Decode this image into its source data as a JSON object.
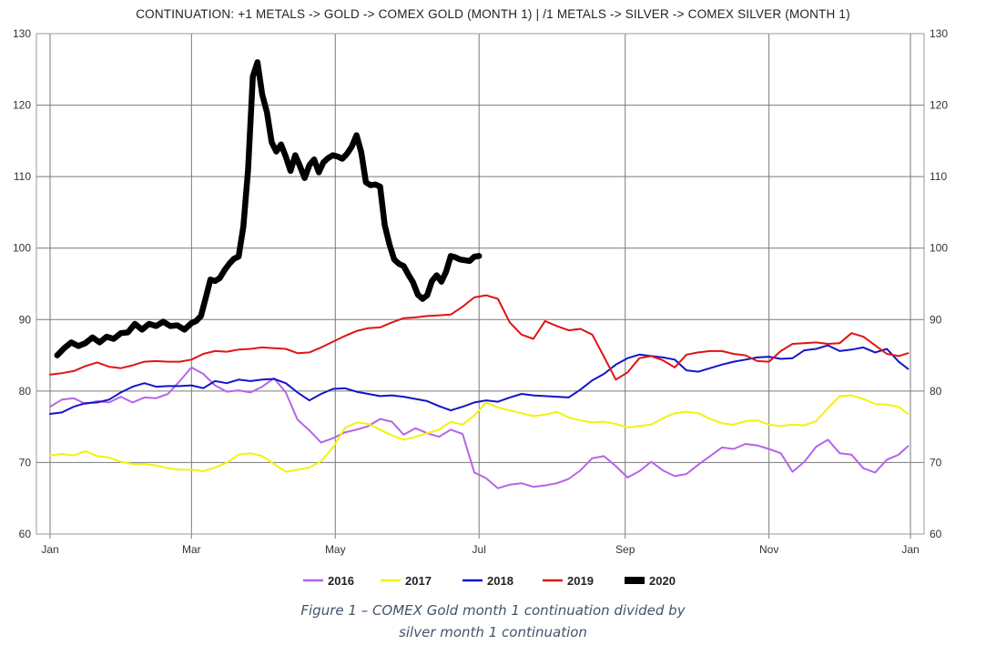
{
  "chart_data": {
    "type": "line",
    "title": "CONTINUATION: +1 METALS -> GOLD -> COMEX GOLD (MONTH 1) | /1 METALS -> SILVER -> COMEX SILVER (MONTH 1)",
    "xlabel": "",
    "ylabel": "",
    "x_ticks": [
      "Jan",
      "Mar",
      "May",
      "Jul",
      "Sep",
      "Nov",
      "Jan"
    ],
    "y_ticks": [
      60,
      70,
      80,
      90,
      100,
      110,
      120,
      130
    ],
    "ylim": [
      60,
      130
    ],
    "xlim_days": [
      0,
      365
    ],
    "grid": true,
    "legend_position": "bottom",
    "x_unit": "day of year",
    "series": [
      {
        "name": "2016",
        "color": "#b565e8",
        "x": [
          0,
          5,
          10,
          15,
          20,
          25,
          30,
          35,
          40,
          45,
          50,
          55,
          60,
          65,
          70,
          75,
          80,
          85,
          90,
          95,
          100,
          105,
          110,
          115,
          120,
          125,
          130,
          135,
          140,
          145,
          150,
          155,
          160,
          165,
          170,
          175,
          180,
          185,
          190,
          195,
          200,
          205,
          210,
          215,
          220,
          225,
          230,
          235,
          240,
          245,
          250,
          255,
          260,
          265,
          270,
          275,
          280,
          285,
          290,
          295,
          300,
          305,
          310,
          315,
          320,
          325,
          330,
          335,
          340,
          345,
          350,
          355,
          360,
          364
        ],
        "values": [
          77.8,
          78.8,
          79,
          78.2,
          78.6,
          78.4,
          79.2,
          78.4,
          79.1,
          79,
          79.6,
          81.4,
          83.3,
          82.4,
          80.8,
          79.9,
          80.1,
          79.8,
          80.6,
          81.8,
          79.8,
          76,
          74.5,
          72.8,
          73.4,
          74.2,
          74.6,
          75.1,
          76.1,
          75.7,
          73.9,
          74.8,
          74.1,
          73.6,
          74.6,
          74,
          68.6,
          67.8,
          66.4,
          66.9,
          67.1,
          66.6,
          66.8,
          67.1,
          67.7,
          68.9,
          70.6,
          70.9,
          69.5,
          67.9,
          68.8,
          70.1,
          68.9,
          68.1,
          68.4,
          69.7,
          70.9,
          72.1,
          71.9,
          72.6,
          72.4,
          71.9,
          71.3,
          68.7,
          70.1,
          72.2,
          73.2,
          71.3,
          71.1,
          69.2,
          68.6,
          70.4,
          71.1,
          72.3
        ]
      },
      {
        "name": "2017",
        "color": "#f2f20d",
        "x": [
          0,
          5,
          10,
          15,
          20,
          25,
          30,
          35,
          40,
          45,
          50,
          55,
          60,
          65,
          70,
          75,
          80,
          85,
          90,
          95,
          100,
          105,
          110,
          115,
          120,
          125,
          130,
          135,
          140,
          145,
          150,
          155,
          160,
          165,
          170,
          175,
          180,
          185,
          190,
          195,
          200,
          205,
          210,
          215,
          220,
          225,
          230,
          235,
          240,
          245,
          250,
          255,
          260,
          265,
          270,
          275,
          280,
          285,
          290,
          295,
          300,
          305,
          310,
          315,
          320,
          325,
          330,
          335,
          340,
          345,
          350,
          355,
          360,
          364
        ],
        "values": [
          71,
          71.2,
          71,
          71.6,
          70.9,
          70.7,
          70.1,
          69.8,
          69.8,
          69.6,
          69.2,
          69,
          69,
          68.8,
          69.3,
          70,
          71.1,
          71.3,
          70.9,
          69.8,
          68.7,
          69,
          69.3,
          70.2,
          72.1,
          74.8,
          75.6,
          75.4,
          74.6,
          73.8,
          73.2,
          73.6,
          74.1,
          74.6,
          75.7,
          75.3,
          76.6,
          78.4,
          77.7,
          77.3,
          76.9,
          76.5,
          76.7,
          77.1,
          76.3,
          75.9,
          75.6,
          75.7,
          75.4,
          74.9,
          75.1,
          75.3,
          76.2,
          76.9,
          77.1,
          76.9,
          76.1,
          75.5,
          75.3,
          75.8,
          75.9,
          75.3,
          75.1,
          75.3,
          75.2,
          75.8,
          77.6,
          79.3,
          79.4,
          78.9,
          78.2,
          78.1,
          77.8,
          76.8
        ]
      },
      {
        "name": "2018",
        "color": "#1313c8",
        "x": [
          0,
          5,
          10,
          15,
          20,
          25,
          30,
          35,
          40,
          45,
          50,
          55,
          60,
          65,
          70,
          75,
          80,
          85,
          90,
          95,
          100,
          105,
          110,
          115,
          120,
          125,
          130,
          135,
          140,
          145,
          150,
          155,
          160,
          165,
          170,
          175,
          180,
          185,
          190,
          195,
          200,
          205,
          210,
          215,
          220,
          225,
          230,
          235,
          240,
          245,
          250,
          255,
          260,
          265,
          270,
          275,
          280,
          285,
          290,
          295,
          300,
          305,
          310,
          315,
          320,
          325,
          330,
          335,
          340,
          345,
          350,
          355,
          360,
          364
        ],
        "values": [
          76.8,
          77,
          77.8,
          78.3,
          78.4,
          78.8,
          79.8,
          80.6,
          81.1,
          80.6,
          80.7,
          80.7,
          80.8,
          80.4,
          81.4,
          81.1,
          81.6,
          81.4,
          81.6,
          81.7,
          81.1,
          79.8,
          78.7,
          79.6,
          80.3,
          80.4,
          79.9,
          79.6,
          79.3,
          79.4,
          79.2,
          78.9,
          78.6,
          77.9,
          77.3,
          77.8,
          78.4,
          78.7,
          78.5,
          79.1,
          79.6,
          79.4,
          79.3,
          79.2,
          79.1,
          80.2,
          81.5,
          82.4,
          83.7,
          84.6,
          85.1,
          84.9,
          84.7,
          84.4,
          82.9,
          82.7,
          83.2,
          83.7,
          84.1,
          84.4,
          84.7,
          84.8,
          84.5,
          84.6,
          85.7,
          85.9,
          86.4,
          85.6,
          85.8,
          86.1,
          85.4,
          85.9,
          84.1,
          83.1
        ]
      },
      {
        "name": "2019",
        "color": "#e01414",
        "x": [
          0,
          5,
          10,
          15,
          20,
          25,
          30,
          35,
          40,
          45,
          50,
          55,
          60,
          65,
          70,
          75,
          80,
          85,
          90,
          95,
          100,
          105,
          110,
          115,
          120,
          125,
          130,
          135,
          140,
          145,
          150,
          155,
          160,
          165,
          170,
          175,
          180,
          185,
          190,
          195,
          200,
          205,
          210,
          215,
          220,
          225,
          230,
          235,
          240,
          245,
          250,
          255,
          260,
          265,
          270,
          275,
          280,
          285,
          290,
          295,
          300,
          305,
          310,
          315,
          320,
          325,
          330,
          335,
          340,
          345,
          350,
          355,
          360,
          364
        ],
        "values": [
          82.3,
          82.5,
          82.8,
          83.5,
          84,
          83.4,
          83.2,
          83.6,
          84.1,
          84.2,
          84.1,
          84.1,
          84.4,
          85.2,
          85.6,
          85.5,
          85.8,
          85.9,
          86.1,
          86,
          85.9,
          85.3,
          85.4,
          86.1,
          86.9,
          87.7,
          88.4,
          88.8,
          88.9,
          89.6,
          90.2,
          90.3,
          90.5,
          90.6,
          90.7,
          91.8,
          93.1,
          93.4,
          92.9,
          89.6,
          87.9,
          87.3,
          89.8,
          89.1,
          88.5,
          88.7,
          87.9,
          84.8,
          81.6,
          82.6,
          84.6,
          84.9,
          84.3,
          83.3,
          85.1,
          85.4,
          85.6,
          85.6,
          85.2,
          85,
          84.2,
          84.1,
          85.6,
          86.6,
          86.7,
          86.8,
          86.6,
          86.7,
          88.1,
          87.6,
          86.4,
          85.2,
          84.9,
          85.3
        ]
      },
      {
        "name": "2020",
        "color": "#000000",
        "x": [
          3,
          6,
          9,
          12,
          15,
          18,
          21,
          24,
          27,
          30,
          33,
          36,
          39,
          42,
          45,
          48,
          51,
          54,
          57,
          60,
          62,
          64,
          66,
          68,
          70,
          72,
          74,
          76,
          78,
          80,
          82,
          84,
          86,
          88,
          90,
          92,
          94,
          96,
          98,
          100,
          102,
          104,
          106,
          108,
          110,
          112,
          114,
          116,
          118,
          120,
          122,
          124,
          126,
          128,
          130,
          132,
          134,
          136,
          138,
          140,
          142,
          144,
          146,
          148,
          150,
          152,
          154,
          156,
          158,
          160,
          162,
          164,
          166,
          168,
          170,
          172,
          174,
          176,
          178,
          180,
          182
        ],
        "values": [
          85,
          86,
          86.8,
          86.3,
          86.7,
          87.5,
          86.8,
          87.6,
          87.3,
          88.1,
          88.2,
          89.4,
          88.6,
          89.4,
          89.1,
          89.7,
          89.1,
          89.2,
          88.6,
          89.5,
          89.8,
          90.5,
          93,
          95.6,
          95.4,
          95.8,
          96.9,
          97.8,
          98.5,
          98.8,
          103,
          111,
          124,
          126,
          121.5,
          119,
          114.8,
          113.5,
          114.5,
          112.8,
          110.8,
          113,
          111.5,
          109.8,
          111.6,
          112.4,
          110.6,
          112,
          112.6,
          113,
          112.8,
          112.5,
          113.2,
          114.2,
          115.8,
          113.4,
          109.2,
          108.8,
          108.9,
          108.6,
          103.2,
          100.5,
          98.4,
          97.8,
          97.5,
          96.3,
          95.2,
          93.5,
          92.9,
          93.4,
          95.4,
          96.2,
          95.3,
          96.7,
          98.9,
          98.7,
          98.4,
          98.3,
          98.2,
          98.8,
          98.9
        ]
      }
    ]
  },
  "caption": {
    "line1": "Figure 1 – COMEX Gold month 1 continuation divided by",
    "line2": "silver month 1 continuation"
  }
}
